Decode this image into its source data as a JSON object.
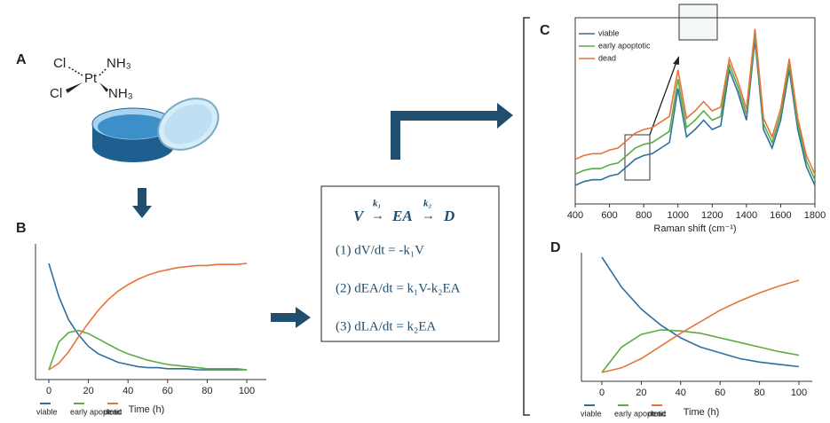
{
  "panels": {
    "A": {
      "panel_label": "A",
      "molecule": {
        "ligands": [
          "Cl",
          "Cl",
          "NH₃",
          "NH₃"
        ],
        "metal": "Pt"
      }
    },
    "model": {
      "species": [
        "V",
        "EA",
        "D"
      ],
      "rates": [
        "k₁",
        "k₂"
      ],
      "equations": [
        "(1) dV/dt = -k₁V",
        "(2) dEA/dt = k₁V-k₂EA",
        "(3) dLA/dt = k₂EA"
      ]
    }
  },
  "chart_data": [
    {
      "type": "line",
      "panel_label": "B",
      "xlabel": "Time (h)",
      "x": [
        0,
        5,
        10,
        15,
        20,
        25,
        30,
        35,
        40,
        45,
        50,
        55,
        60,
        65,
        70,
        75,
        80,
        85,
        90,
        95,
        100
      ],
      "xlim": [
        0,
        100
      ],
      "xticks": [
        0,
        20,
        40,
        60,
        80,
        100
      ],
      "ylim": [
        0,
        1
      ],
      "series": [
        {
          "name": "viable",
          "color": "#2e6f9e",
          "values": [
            1,
            0.69,
            0.47,
            0.33,
            0.22,
            0.15,
            0.11,
            0.07,
            0.05,
            0.03,
            0.02,
            0.02,
            0.01,
            0.01,
            0.01,
            0,
            0,
            0,
            0,
            0,
            0
          ]
        },
        {
          "name": "early apoptotic",
          "color": "#5aac44",
          "values": [
            0,
            0.26,
            0.35,
            0.37,
            0.34,
            0.29,
            0.24,
            0.19,
            0.15,
            0.12,
            0.09,
            0.07,
            0.05,
            0.04,
            0.03,
            0.02,
            0.01,
            0.01,
            0.01,
            0.01,
            0
          ]
        },
        {
          "name": "dead",
          "color": "#e8733a",
          "values": [
            0,
            0.06,
            0.17,
            0.31,
            0.44,
            0.56,
            0.66,
            0.74,
            0.8,
            0.85,
            0.89,
            0.92,
            0.94,
            0.96,
            0.97,
            0.98,
            0.98,
            0.99,
            0.99,
            0.99,
            1
          ]
        }
      ]
    },
    {
      "type": "line",
      "panel_label": "C",
      "xlabel": "Raman shift (cm⁻¹)",
      "x": [
        400,
        450,
        500,
        550,
        600,
        650,
        700,
        750,
        800,
        850,
        900,
        950,
        1000,
        1050,
        1100,
        1150,
        1200,
        1250,
        1300,
        1350,
        1400,
        1450,
        1500,
        1550,
        1600,
        1650,
        1700,
        1750,
        1800
      ],
      "xlim": [
        400,
        1800
      ],
      "xticks": [
        400,
        600,
        800,
        1000,
        1200,
        1400,
        1600,
        1800
      ],
      "ylim": [
        0,
        1
      ],
      "series": [
        {
          "name": "viable",
          "color": "#2e6f9e",
          "values": [
            0.1,
            0.12,
            0.13,
            0.13,
            0.15,
            0.16,
            0.2,
            0.24,
            0.26,
            0.27,
            0.3,
            0.33,
            0.62,
            0.36,
            0.4,
            0.45,
            0.4,
            0.42,
            0.72,
            0.6,
            0.45,
            0.88,
            0.4,
            0.3,
            0.45,
            0.72,
            0.4,
            0.2,
            0.1
          ]
        },
        {
          "name": "early apoptotic",
          "color": "#5aac44",
          "values": [
            0.16,
            0.18,
            0.19,
            0.19,
            0.21,
            0.22,
            0.26,
            0.3,
            0.32,
            0.33,
            0.36,
            0.39,
            0.67,
            0.41,
            0.45,
            0.5,
            0.45,
            0.47,
            0.75,
            0.63,
            0.48,
            0.91,
            0.43,
            0.33,
            0.48,
            0.75,
            0.43,
            0.23,
            0.13
          ]
        },
        {
          "name": "dead",
          "color": "#e8733a",
          "values": [
            0.24,
            0.26,
            0.27,
            0.27,
            0.29,
            0.3,
            0.34,
            0.38,
            0.4,
            0.41,
            0.44,
            0.47,
            0.72,
            0.46,
            0.5,
            0.55,
            0.5,
            0.52,
            0.78,
            0.66,
            0.51,
            0.94,
            0.46,
            0.36,
            0.51,
            0.78,
            0.46,
            0.26,
            0.16
          ]
        }
      ]
    },
    {
      "type": "line",
      "panel_label": "D",
      "xlabel": "Time (h)",
      "x": [
        0,
        10,
        20,
        30,
        40,
        50,
        60,
        70,
        80,
        90,
        100
      ],
      "xlim": [
        0,
        100
      ],
      "xticks": [
        0,
        20,
        40,
        60,
        80,
        100
      ],
      "ylim": [
        0,
        1
      ],
      "series": [
        {
          "name": "viable",
          "color": "#2e6f9e",
          "values": [
            1,
            0.74,
            0.55,
            0.41,
            0.3,
            0.22,
            0.17,
            0.12,
            0.09,
            0.07,
            0.05
          ]
        },
        {
          "name": "early apoptotic",
          "color": "#5aac44",
          "values": [
            0,
            0.22,
            0.33,
            0.37,
            0.36,
            0.34,
            0.3,
            0.26,
            0.22,
            0.18,
            0.15
          ]
        },
        {
          "name": "dead",
          "color": "#e8733a",
          "values": [
            0,
            0.04,
            0.12,
            0.23,
            0.34,
            0.44,
            0.54,
            0.62,
            0.69,
            0.75,
            0.8
          ]
        }
      ]
    }
  ]
}
